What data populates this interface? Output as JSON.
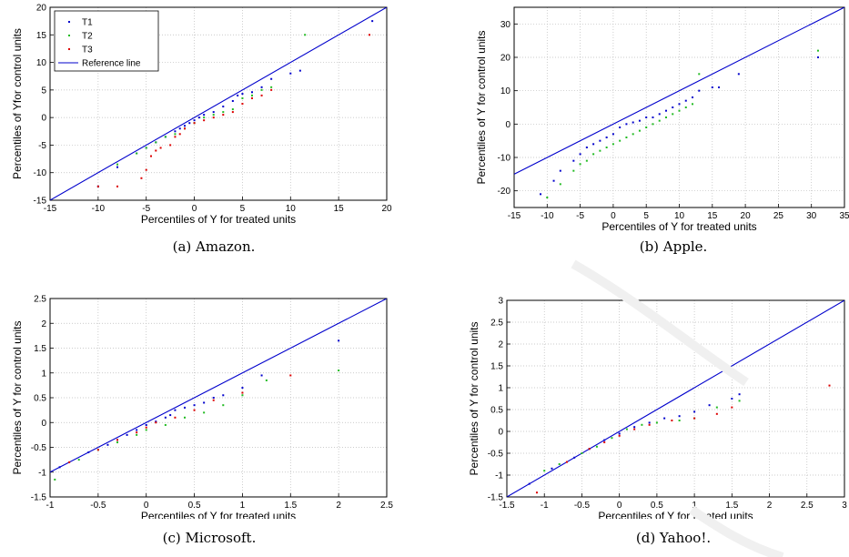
{
  "colors": {
    "T1": "#0000cc",
    "T2": "#22bb22",
    "T3": "#dd0000",
    "reference": "#0000cc",
    "grid": "#bbbbbb"
  },
  "legend": {
    "entries": [
      "T1",
      "T2",
      "T3",
      "Reference line"
    ]
  },
  "chart_data": [
    {
      "type": "scatter",
      "caption": "(a) Amazon.",
      "xlabel": "Percentiles of Y for treated units",
      "ylabel": "Percentiles of Yfor control units",
      "xlim": [
        -15,
        20
      ],
      "ylim": [
        -15,
        20
      ],
      "xticks": [
        -15,
        -10,
        -5,
        0,
        5,
        10,
        15,
        20
      ],
      "yticks": [
        -15,
        -10,
        -5,
        0,
        5,
        10,
        15,
        20
      ],
      "grid": true,
      "legend_position": "top-left",
      "reference_line": [
        [
          -15,
          -15
        ],
        [
          20,
          20
        ]
      ],
      "series": [
        {
          "name": "T1",
          "x": [
            -10,
            -8,
            -6,
            -5,
            -4,
            -3,
            -2,
            -1.5,
            -1,
            -0.5,
            0,
            0.5,
            1,
            2,
            3,
            4,
            4.5,
            5,
            6,
            7,
            8,
            10,
            11,
            18.5
          ],
          "y": [
            -12.5,
            -9,
            -6.5,
            -5.5,
            -4.5,
            -3.5,
            -2.5,
            -2,
            -1.5,
            -1,
            -0.5,
            0,
            0.5,
            1,
            2,
            3,
            4,
            4.3,
            4.6,
            5.5,
            7,
            8,
            8.5,
            17.5
          ]
        },
        {
          "name": "T2",
          "x": [
            -8,
            -6,
            -5,
            -4,
            -3,
            -2,
            -1,
            0,
            1,
            2,
            3,
            4,
            5,
            6,
            7,
            8,
            11.5
          ],
          "y": [
            -8.5,
            -6.5,
            -5.5,
            -4.5,
            -3.5,
            -3,
            -2,
            -1,
            0,
            0.5,
            1,
            1.5,
            3.5,
            4,
            5,
            5.5,
            15
          ]
        },
        {
          "name": "T3",
          "x": [
            -10,
            -8,
            -5.5,
            -5,
            -4.5,
            -4,
            -3.5,
            -2.5,
            -2,
            -1.5,
            -1,
            0,
            1,
            2,
            3,
            4,
            5,
            6,
            7,
            8,
            18.2
          ],
          "y": [
            -12.5,
            -12.5,
            -11,
            -9.5,
            -7,
            -6,
            -5.5,
            -5,
            -3.5,
            -3,
            -2,
            -1,
            -0.5,
            0,
            0.5,
            1,
            2.5,
            3.5,
            4,
            5,
            15
          ]
        }
      ]
    },
    {
      "type": "scatter",
      "caption": "(b) Apple.",
      "xlabel": "Percentiles of Y for treated units",
      "ylabel": "Percentiles of Y for control units",
      "xlim": [
        -15,
        35
      ],
      "ylim": [
        -25,
        35
      ],
      "xticks": [
        -15,
        -10,
        -5,
        0,
        5,
        10,
        15,
        20,
        25,
        30,
        35
      ],
      "yticks": [
        -20,
        -10,
        0,
        10,
        20,
        30
      ],
      "grid": true,
      "reference_line": [
        [
          -15,
          -15
        ],
        [
          35,
          35
        ]
      ],
      "series": [
        {
          "name": "T1",
          "x": [
            -11,
            -9,
            -8,
            -6,
            -5,
            -4,
            -3,
            -2,
            -1,
            0,
            1,
            2,
            3,
            4,
            5,
            6,
            7,
            8,
            9,
            10,
            11,
            12,
            13,
            15,
            16,
            19,
            31
          ],
          "y": [
            -21,
            -17,
            -14,
            -11,
            -9,
            -7,
            -6,
            -5,
            -4,
            -3,
            -1,
            0,
            0.5,
            1,
            2,
            2,
            3,
            4,
            5,
            6,
            7,
            8,
            10,
            11,
            11,
            15,
            20
          ]
        },
        {
          "name": "T2",
          "x": [
            -10,
            -8,
            -6,
            -5,
            -4,
            -3,
            -2,
            -1,
            0,
            1,
            2,
            3,
            4,
            5,
            6,
            7,
            8,
            9,
            10,
            11,
            12,
            13,
            31
          ],
          "y": [
            -22,
            -18,
            -14,
            -12,
            -11,
            -9,
            -8,
            -7,
            -6,
            -5,
            -4,
            -3,
            -2,
            -1,
            0,
            1,
            2,
            3,
            4,
            5,
            6,
            15,
            22
          ]
        }
      ]
    },
    {
      "type": "scatter",
      "caption": "(c) Microsoft.",
      "xlabel": "Percentiles of Y for treated units",
      "ylabel": "Percentiles of Y for control units",
      "xlim": [
        -1,
        2.5
      ],
      "ylim": [
        -1.5,
        2.5
      ],
      "xticks": [
        -1,
        -0.5,
        0,
        0.5,
        1,
        1.5,
        2,
        2.5
      ],
      "yticks": [
        -1.5,
        -1,
        -0.5,
        0,
        0.5,
        1,
        1.5,
        2,
        2.5
      ],
      "grid": true,
      "reference_line": [
        [
          -1,
          -1
        ],
        [
          2.5,
          2.5
        ]
      ],
      "series": [
        {
          "name": "T1",
          "x": [
            -0.9,
            -0.6,
            -0.4,
            -0.3,
            -0.2,
            -0.1,
            0,
            0.1,
            0.2,
            0.25,
            0.3,
            0.4,
            0.5,
            0.6,
            0.7,
            0.8,
            1.0,
            1.2,
            2.0
          ],
          "y": [
            -0.9,
            -0.6,
            -0.45,
            -0.35,
            -0.25,
            -0.15,
            -0.05,
            0.02,
            0.1,
            0.15,
            0.25,
            0.3,
            0.35,
            0.4,
            0.5,
            0.55,
            0.7,
            0.95,
            1.65
          ]
        },
        {
          "name": "T2",
          "x": [
            -0.95,
            -0.7,
            -0.5,
            -0.3,
            -0.1,
            0,
            0.2,
            0.4,
            0.6,
            0.8,
            1.0,
            1.25,
            2.0
          ],
          "y": [
            -1.15,
            -0.75,
            -0.55,
            -0.4,
            -0.25,
            -0.15,
            -0.05,
            0.1,
            0.2,
            0.35,
            0.55,
            0.85,
            1.05
          ]
        },
        {
          "name": "T3",
          "x": [
            -0.8,
            -0.5,
            -0.3,
            -0.1,
            0,
            0.1,
            0.3,
            0.5,
            0.7,
            1.0,
            1.5
          ],
          "y": [
            -0.8,
            -0.55,
            -0.35,
            -0.2,
            -0.1,
            0,
            0.1,
            0.25,
            0.45,
            0.6,
            0.95
          ]
        }
      ]
    },
    {
      "type": "scatter",
      "caption": "(d) Yahoo!.",
      "xlabel": "Percentiles of Y for treated units",
      "ylabel": "Percentiles of Y for control units",
      "xlim": [
        -1.5,
        3
      ],
      "ylim": [
        -1.5,
        3
      ],
      "xticks": [
        -1.5,
        -1,
        -0.5,
        0,
        0.5,
        1,
        1.5,
        2,
        2.5,
        3
      ],
      "yticks": [
        -1.5,
        -1,
        -0.5,
        0,
        0.5,
        1,
        1.5,
        2,
        2.5,
        3
      ],
      "grid": true,
      "reference_line": [
        [
          -1.5,
          -1.5
        ],
        [
          3,
          3
        ]
      ],
      "series": [
        {
          "name": "T1",
          "x": [
            -1.2,
            -0.9,
            -0.6,
            -0.4,
            -0.2,
            0,
            0.2,
            0.4,
            0.6,
            0.8,
            1.0,
            1.2,
            1.5,
            1.6
          ],
          "y": [
            -1.2,
            -0.85,
            -0.6,
            -0.4,
            -0.2,
            -0.05,
            0.1,
            0.2,
            0.3,
            0.35,
            0.45,
            0.6,
            0.75,
            0.85
          ]
        },
        {
          "name": "T2",
          "x": [
            -1.0,
            -0.8,
            -0.5,
            -0.3,
            -0.1,
            0.1,
            0.3,
            0.5,
            0.8,
            1.0,
            1.3,
            1.6
          ],
          "y": [
            -0.9,
            -0.75,
            -0.5,
            -0.35,
            -0.15,
            0.05,
            0.15,
            0.2,
            0.25,
            0.3,
            0.55,
            0.7
          ]
        },
        {
          "name": "T3",
          "x": [
            -1.1,
            -0.7,
            -0.4,
            -0.2,
            0,
            0.2,
            0.4,
            0.7,
            1.0,
            1.3,
            1.5,
            2.8
          ],
          "y": [
            -1.4,
            -0.7,
            -0.4,
            -0.25,
            -0.1,
            0.05,
            0.15,
            0.25,
            0.3,
            0.4,
            0.55,
            1.05
          ]
        }
      ]
    }
  ]
}
